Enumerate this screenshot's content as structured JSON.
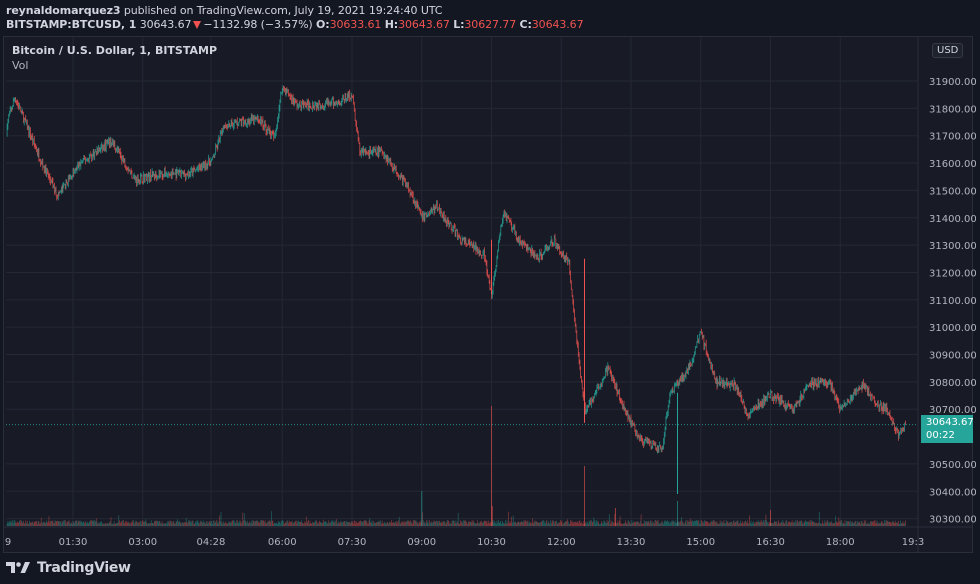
{
  "header": {
    "author": "reynaldomarquez3",
    "published_text": " published on TradingView.com, July 19, 2021 19:24:40 UTC",
    "symbol": "BITSTAMP:BTCUSD, 1",
    "last_price": "30643.67",
    "change": "−1132.98 (−3.57%)",
    "open_label": "O:",
    "open": "30633.61",
    "high_label": "H:",
    "high": "30643.67",
    "low_label": "L:",
    "low": "30627.77",
    "close_label": "C:",
    "close": "30643.67"
  },
  "pane": {
    "title": "Bitcoin / U.S. Dollar, 1, BITSTAMP",
    "volume_label": "Vol",
    "currency_badge": "USD"
  },
  "last_price_label": {
    "price": "30643.67",
    "countdown": "00:22"
  },
  "footer": {
    "brand": "TradingView"
  },
  "colors": {
    "background": "#131722",
    "pane_background": "#181b26",
    "grid": "#242834",
    "up": "#26a69a",
    "down": "#ef5350",
    "text": "#d1d4dc",
    "axis_text": "#b2b5be"
  },
  "chart_data": {
    "type": "candlestick",
    "title": "Bitcoin / U.S. Dollar, 1, BITSTAMP",
    "xlabel": "",
    "ylabel": "USD",
    "ylim": [
      30250,
      32000
    ],
    "y_ticks": [
      31900,
      31800,
      31700,
      31600,
      31500,
      31400,
      31300,
      31200,
      31100,
      31000,
      30900,
      30800,
      30700,
      30500,
      30400,
      30300
    ],
    "y_tick_labels": [
      "31900.00",
      "31800.00",
      "31700.00",
      "31600.00",
      "31500.00",
      "31400.00",
      "31300.00",
      "31200.00",
      "31100.00",
      "31000.00",
      "30900.00",
      "30800.00",
      "30700.00",
      "30500.00",
      "30400.00",
      "30300.00"
    ],
    "x_tick_labels": [
      "9",
      "01:30",
      "03:00",
      "04:28",
      "06:00",
      "07:30",
      "09:00",
      "10:30",
      "12:00",
      "13:30",
      "15:00",
      "16:30",
      "18:00",
      "19:3"
    ],
    "grid": true,
    "approx_price_path": {
      "x_time": [
        "00:00",
        "00:15",
        "00:50",
        "01:10",
        "01:40",
        "02:20",
        "02:50",
        "03:20",
        "04:00",
        "04:30",
        "04:45",
        "05:30",
        "05:50",
        "06:00",
        "06:20",
        "07:10",
        "07:30",
        "07:40",
        "08:10",
        "08:45",
        "09:00",
        "09:20",
        "09:50",
        "10:20",
        "10:30",
        "10:45",
        "11:05",
        "11:30",
        "11:50",
        "12:10",
        "12:25",
        "12:30",
        "12:45",
        "13:00",
        "13:30",
        "13:45",
        "14:10",
        "14:20",
        "14:45",
        "15:00",
        "15:20",
        "15:45",
        "16:00",
        "16:30",
        "17:00",
        "17:20",
        "17:45",
        "18:00",
        "18:30",
        "18:45",
        "19:00",
        "19:15",
        "19:24"
      ],
      "price": [
        31700,
        31840,
        31600,
        31480,
        31600,
        31680,
        31540,
        31560,
        31560,
        31610,
        31740,
        31760,
        31690,
        31880,
        31810,
        31820,
        31850,
        31640,
        31640,
        31500,
        31400,
        31440,
        31320,
        31270,
        31110,
        31420,
        31320,
        31250,
        31320,
        31230,
        30820,
        30700,
        30760,
        30850,
        30650,
        30580,
        30550,
        30760,
        30850,
        30980,
        30800,
        30790,
        30680,
        30750,
        30700,
        30790,
        30800,
        30700,
        30790,
        30720,
        30700,
        30600,
        30643.67
      ]
    },
    "last_price": 30643.67,
    "volume_spikes": [
      {
        "time": "09:00",
        "direction": "up"
      },
      {
        "time": "10:30",
        "direction": "down"
      },
      {
        "time": "12:30",
        "direction": "down"
      },
      {
        "time": "14:30",
        "direction": "up"
      }
    ]
  }
}
